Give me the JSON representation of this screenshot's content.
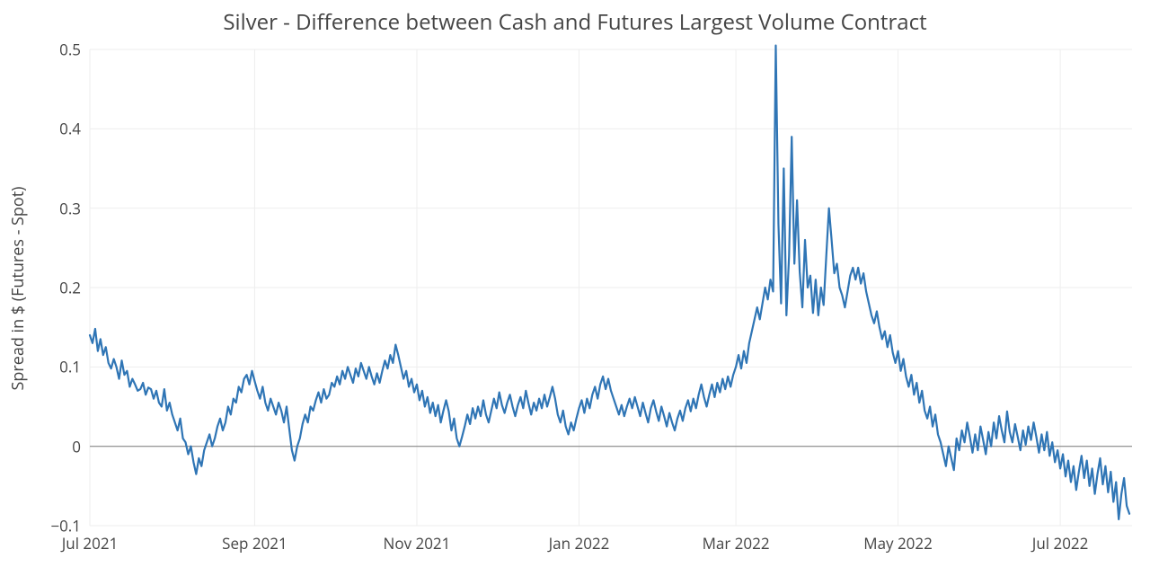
{
  "chart": {
    "type": "line",
    "title": "Silver - Difference between Cash and Futures Largest Volume Contract",
    "title_fontsize": 24,
    "title_color": "#444444",
    "ylabel": "Spread in $ (Futures - Spot)",
    "ylabel_fontsize": 18,
    "background_color": "#ffffff",
    "plot_bg_color": "#ffffff",
    "grid_color": "#eeeeee",
    "zero_line_color": "#888888",
    "line_color": "#2f75b5",
    "line_width": 2.2,
    "ylim": [
      -0.1,
      0.5
    ],
    "yticks": [
      -0.1,
      0,
      0.1,
      0.2,
      0.3,
      0.4,
      0.5
    ],
    "ytick_labels": [
      "−0.1",
      "0",
      "0.1",
      "0.2",
      "0.3",
      "0.4",
      "0.5"
    ],
    "xtick_positions": [
      0,
      62,
      123,
      184,
      243,
      304,
      365
    ],
    "xtick_labels": [
      "Jul 2021",
      "Sep 2021",
      "Nov 2021",
      "Jan 2022",
      "Mar 2022",
      "May 2022",
      "Jul 2022"
    ],
    "x_range": [
      0,
      392
    ],
    "series": {
      "values": [
        0.14,
        0.13,
        0.148,
        0.12,
        0.135,
        0.115,
        0.125,
        0.105,
        0.098,
        0.11,
        0.1,
        0.085,
        0.108,
        0.09,
        0.095,
        0.075,
        0.085,
        0.078,
        0.07,
        0.072,
        0.08,
        0.065,
        0.074,
        0.072,
        0.06,
        0.07,
        0.055,
        0.05,
        0.072,
        0.045,
        0.055,
        0.04,
        0.03,
        0.02,
        0.035,
        0.01,
        0.005,
        -0.01,
        0.0,
        -0.02,
        -0.035,
        -0.015,
        -0.025,
        -0.005,
        0.005,
        0.015,
        0.0,
        0.01,
        0.025,
        0.035,
        0.02,
        0.03,
        0.05,
        0.04,
        0.06,
        0.055,
        0.075,
        0.068,
        0.085,
        0.09,
        0.078,
        0.095,
        0.082,
        0.07,
        0.06,
        0.075,
        0.055,
        0.045,
        0.06,
        0.05,
        0.04,
        0.055,
        0.045,
        0.03,
        0.05,
        0.022,
        -0.005,
        -0.018,
        0.0,
        0.01,
        0.028,
        0.04,
        0.03,
        0.05,
        0.045,
        0.058,
        0.068,
        0.055,
        0.072,
        0.06,
        0.065,
        0.08,
        0.075,
        0.088,
        0.078,
        0.095,
        0.085,
        0.1,
        0.09,
        0.08,
        0.098,
        0.088,
        0.105,
        0.095,
        0.085,
        0.1,
        0.088,
        0.078,
        0.092,
        0.08,
        0.095,
        0.108,
        0.098,
        0.115,
        0.105,
        0.128,
        0.115,
        0.1,
        0.085,
        0.095,
        0.075,
        0.085,
        0.068,
        0.078,
        0.058,
        0.07,
        0.05,
        0.062,
        0.042,
        0.055,
        0.038,
        0.052,
        0.03,
        0.045,
        0.058,
        0.044,
        0.02,
        0.035,
        0.01,
        0.0,
        0.012,
        0.025,
        0.04,
        0.028,
        0.048,
        0.035,
        0.05,
        0.038,
        0.058,
        0.04,
        0.03,
        0.045,
        0.06,
        0.048,
        0.068,
        0.052,
        0.042,
        0.055,
        0.065,
        0.05,
        0.038,
        0.052,
        0.062,
        0.048,
        0.07,
        0.054,
        0.04,
        0.055,
        0.045,
        0.06,
        0.048,
        0.065,
        0.05,
        0.062,
        0.075,
        0.06,
        0.04,
        0.03,
        0.045,
        0.025,
        0.015,
        0.03,
        0.02,
        0.035,
        0.048,
        0.058,
        0.042,
        0.06,
        0.048,
        0.065,
        0.075,
        0.06,
        0.078,
        0.088,
        0.072,
        0.085,
        0.07,
        0.06,
        0.05,
        0.04,
        0.052,
        0.038,
        0.05,
        0.06,
        0.048,
        0.062,
        0.05,
        0.038,
        0.055,
        0.042,
        0.03,
        0.048,
        0.058,
        0.044,
        0.032,
        0.05,
        0.038,
        0.025,
        0.042,
        0.03,
        0.02,
        0.035,
        0.045,
        0.032,
        0.048,
        0.058,
        0.044,
        0.06,
        0.048,
        0.065,
        0.078,
        0.062,
        0.05,
        0.065,
        0.078,
        0.062,
        0.08,
        0.068,
        0.085,
        0.072,
        0.088,
        0.075,
        0.09,
        0.1,
        0.115,
        0.098,
        0.12,
        0.105,
        0.13,
        0.145,
        0.16,
        0.175,
        0.16,
        0.18,
        0.2,
        0.185,
        0.21,
        0.195,
        0.505,
        0.28,
        0.18,
        0.35,
        0.165,
        0.24,
        0.39,
        0.23,
        0.31,
        0.22,
        0.175,
        0.26,
        0.2,
        0.215,
        0.168,
        0.21,
        0.165,
        0.2,
        0.178,
        0.24,
        0.3,
        0.26,
        0.218,
        0.23,
        0.2,
        0.19,
        0.175,
        0.195,
        0.215,
        0.225,
        0.21,
        0.225,
        0.205,
        0.218,
        0.195,
        0.18,
        0.165,
        0.155,
        0.17,
        0.15,
        0.135,
        0.145,
        0.125,
        0.14,
        0.118,
        0.105,
        0.12,
        0.095,
        0.11,
        0.088,
        0.075,
        0.09,
        0.065,
        0.08,
        0.055,
        0.07,
        0.045,
        0.035,
        0.05,
        0.025,
        0.04,
        0.015,
        0.005,
        -0.01,
        -0.025,
        0.0,
        -0.015,
        -0.03,
        0.01,
        -0.005,
        0.02,
        0.005,
        0.03,
        0.012,
        -0.008,
        0.015,
        -0.005,
        0.025,
        0.008,
        -0.01,
        0.018,
        0.0,
        0.03,
        0.01,
        0.038,
        0.02,
        0.005,
        0.044,
        0.018,
        0.005,
        0.028,
        0.012,
        -0.005,
        0.02,
        0.002,
        0.025,
        0.008,
        0.03,
        0.012,
        -0.008,
        0.015,
        -0.005,
        0.018,
        -0.012,
        0.005,
        -0.02,
        -0.005,
        -0.028,
        -0.01,
        -0.038,
        -0.018,
        -0.045,
        -0.025,
        -0.055,
        -0.032,
        -0.012,
        -0.04,
        -0.018,
        -0.05,
        -0.028,
        -0.06,
        -0.035,
        -0.015,
        -0.048,
        -0.025,
        -0.058,
        -0.032,
        -0.07,
        -0.045,
        -0.092,
        -0.06,
        -0.04,
        -0.075,
        -0.085
      ]
    }
  }
}
